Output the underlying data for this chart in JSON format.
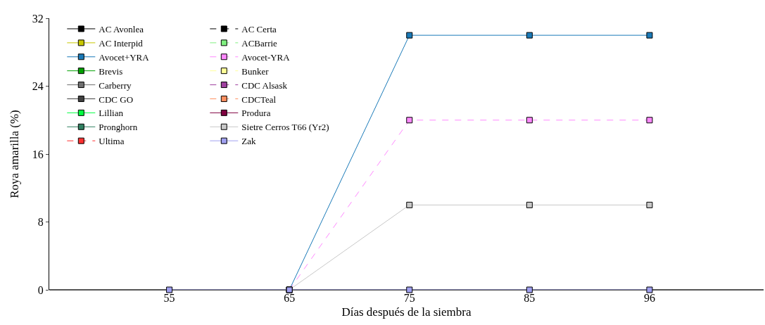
{
  "chart_data": {
    "type": "line",
    "xlabel": "Días después de la siembra",
    "ylabel": "Roya amarilla (%)",
    "categories": [
      "55",
      "65",
      "75",
      "85",
      "96"
    ],
    "ylim": [
      0,
      32
    ],
    "yticks": [
      0,
      8,
      16,
      24,
      32
    ],
    "grid": false,
    "legend": "top left",
    "marker": "square",
    "series": [
      {
        "name": "AC Avonlea",
        "color": "#000000",
        "line_style": "solid",
        "values": [
          null,
          null,
          null,
          null,
          null
        ]
      },
      {
        "name": "AC Certa",
        "color": "#000000",
        "line_style": "dashed",
        "values": [
          null,
          null,
          null,
          null,
          null
        ]
      },
      {
        "name": "AC Interpid",
        "color": "#c8c800",
        "line_style": "solid",
        "values": [
          null,
          null,
          null,
          null,
          null
        ]
      },
      {
        "name": "ACBarrie",
        "color": "#80f080",
        "line_style": "dashed",
        "values": [
          null,
          null,
          null,
          null,
          null
        ]
      },
      {
        "name": "Avocet+YRA",
        "color": "#1a7ab8",
        "line_style": "solid",
        "values": [
          null,
          0,
          30,
          30,
          30
        ]
      },
      {
        "name": "Avocet-YRA",
        "color": "#ff88ff",
        "line_style": "dashed",
        "values": [
          null,
          0,
          20,
          20,
          20
        ]
      },
      {
        "name": "Brevis",
        "color": "#00a000",
        "line_style": "solid",
        "values": [
          null,
          null,
          null,
          null,
          null
        ]
      },
      {
        "name": "Bunker",
        "color": "#ffff99",
        "line_style": "dashed",
        "values": [
          null,
          null,
          null,
          null,
          null
        ]
      },
      {
        "name": "Carberry",
        "color": "#707070",
        "line_style": "solid",
        "values": [
          null,
          null,
          null,
          null,
          null
        ]
      },
      {
        "name": "CDC Alsask",
        "color": "#a040a0",
        "line_style": "dashed",
        "values": [
          null,
          null,
          null,
          null,
          null
        ]
      },
      {
        "name": "CDC GO",
        "color": "#404040",
        "line_style": "solid",
        "values": [
          null,
          null,
          null,
          null,
          null
        ]
      },
      {
        "name": "CDCTeal",
        "color": "#ff9060",
        "line_style": "dashed",
        "values": [
          null,
          null,
          null,
          null,
          null
        ]
      },
      {
        "name": "Lillian",
        "color": "#00ff40",
        "line_style": "solid",
        "values": [
          null,
          null,
          null,
          null,
          null
        ]
      },
      {
        "name": "Produra",
        "color": "#800040",
        "line_style": "solid",
        "values": [
          null,
          null,
          null,
          null,
          null
        ]
      },
      {
        "name": "Pronghorn",
        "color": "#308060",
        "line_style": "solid",
        "values": [
          null,
          null,
          null,
          null,
          null
        ]
      },
      {
        "name": "Sietre Cerros T66 (Yr2)",
        "color": "#c8c8c8",
        "line_style": "solid",
        "values": [
          null,
          0,
          10,
          10,
          10
        ]
      },
      {
        "name": "Ultima",
        "color": "#ff3030",
        "line_style": "dashed",
        "values": [
          null,
          null,
          null,
          null,
          null
        ]
      },
      {
        "name": "Zak",
        "color": "#a0a0f0",
        "line_style": "solid",
        "values": [
          0,
          0,
          0,
          0,
          0
        ]
      }
    ]
  }
}
